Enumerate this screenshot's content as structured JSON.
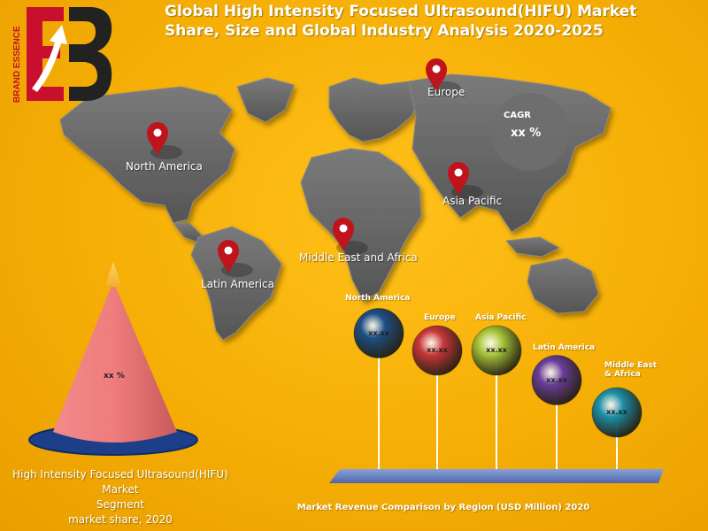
{
  "header": {
    "title_line1": "Global High Intensity Focused Ultrasound(HIFU) Market",
    "title_line2": "Share, Size and Global Industry Analysis 2020-2025"
  },
  "logo": {
    "text": "BRAND ESSENCE",
    "icon": "be-arrow-logo"
  },
  "map": {
    "pin_icon": "location-pin-icon",
    "regions": [
      "Europe",
      "North America",
      "Asia Pacific",
      "Middle East and Africa",
      "Latin America"
    ]
  },
  "cagr": {
    "label": "CAGR",
    "value": "xx %"
  },
  "cone": {
    "value": "xx %"
  },
  "left_caption": {
    "line1": "High Intensity Focused Ultrasound(HIFU)  Market",
    "line2": "Segment",
    "line3": "market share, 2020"
  },
  "right_caption": "Market Revenue Comparison by Region (USD Million) 2020",
  "colors": {
    "background": "#f5ae05",
    "map": "#6b6b6b",
    "pin": "#c0141c",
    "north_america": "#1d4f86",
    "europe": "#c7373a",
    "asia_pacific": "#a8c43a",
    "latin_america": "#6a3d9a",
    "middle_east_africa": "#1d8fa8",
    "cone": "#e27070",
    "platform": "#6f86c0"
  },
  "chart_data": [
    {
      "type": "bar",
      "title": "Market Revenue Comparison by Region (USD Million) 2020",
      "categories": [
        "North America",
        "Europe",
        "Asia Pacific",
        "Latin America",
        "Middle East & Africa"
      ],
      "value_labels": [
        "xx.xx",
        "xx.xx",
        "xx.xx",
        "xx.xx",
        "xx.xx"
      ],
      "rank_heights": [
        5,
        4,
        4,
        3,
        2
      ]
    },
    {
      "type": "pie",
      "title": "High Intensity Focused Ultrasound(HIFU)  Market Segment market share, 2020",
      "value_label": "xx %"
    }
  ]
}
